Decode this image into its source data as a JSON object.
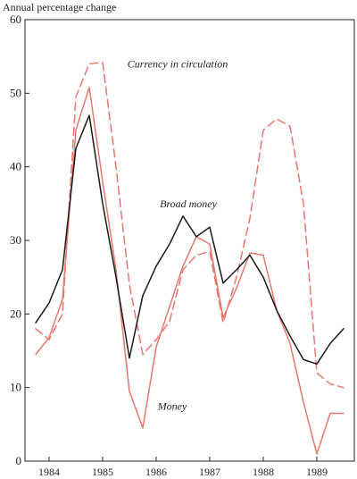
{
  "chart_data": {
    "type": "line",
    "ylabel": "Annual percentage change",
    "ylim": [
      0,
      60
    ],
    "yticks": [
      0,
      10,
      20,
      30,
      40,
      50,
      60
    ],
    "xlim": [
      1983.55,
      1989.7
    ],
    "xticks": [
      "1984",
      "1985",
      "1986",
      "1987",
      "1988",
      "1989"
    ],
    "xtick_positions": [
      1984,
      1985,
      1986,
      1987,
      1988,
      1989
    ],
    "grid": false,
    "annotations": [
      {
        "text": "Currency in circulation",
        "series": "currency",
        "x": 1986.4,
        "y": 53.5
      },
      {
        "text": "Broad money",
        "series": "broad",
        "x": 1986.6,
        "y": 34.5
      },
      {
        "text": "Money",
        "series": "money",
        "x": 1986.3,
        "y": 7.0
      }
    ],
    "series": [
      {
        "id": "broad",
        "name": "Broad money",
        "color": "#1a1a1a",
        "style": "solid",
        "x": [
          1983.75,
          1984.0,
          1984.25,
          1984.5,
          1984.75,
          1985.0,
          1985.25,
          1985.5,
          1985.75,
          1986.0,
          1986.25,
          1986.5,
          1986.75,
          1987.0,
          1987.25,
          1987.5,
          1987.75,
          1988.0,
          1988.25,
          1988.5,
          1988.75,
          1989.0,
          1989.25,
          1989.5
        ],
        "values": [
          18.8,
          21.5,
          26.0,
          42.5,
          47.0,
          35.0,
          25.0,
          14.0,
          22.5,
          26.5,
          29.5,
          33.3,
          30.5,
          31.8,
          24.2,
          26.0,
          28.0,
          25.0,
          20.5,
          17.0,
          13.8,
          13.2,
          16.0,
          18.0
        ]
      },
      {
        "id": "money",
        "name": "Money",
        "color": "#e8776f",
        "style": "solid",
        "x": [
          1983.75,
          1984.0,
          1984.25,
          1984.5,
          1984.75,
          1985.0,
          1985.25,
          1985.5,
          1985.75,
          1986.0,
          1986.25,
          1986.5,
          1986.75,
          1987.0,
          1987.25,
          1987.5,
          1987.75,
          1988.0,
          1988.25,
          1988.5,
          1988.75,
          1989.0,
          1989.25,
          1989.5
        ],
        "values": [
          14.5,
          16.8,
          22.0,
          45.0,
          50.8,
          38.0,
          26.0,
          9.5,
          4.5,
          15.5,
          21.0,
          26.5,
          30.5,
          29.5,
          19.5,
          23.5,
          28.3,
          28.0,
          20.5,
          16.0,
          8.0,
          1.0,
          6.5,
          6.5
        ]
      },
      {
        "id": "currency",
        "name": "Currency in circulation",
        "color": "#e8776f",
        "style": "dashed",
        "x": [
          1983.75,
          1984.0,
          1984.25,
          1984.5,
          1984.75,
          1985.0,
          1985.25,
          1985.5,
          1985.75,
          1986.0,
          1986.25,
          1986.5,
          1986.75,
          1987.0,
          1987.25,
          1987.5,
          1987.75,
          1988.0,
          1988.25,
          1988.5,
          1988.75,
          1989.0,
          1989.25,
          1989.5
        ],
        "values": [
          18.0,
          16.5,
          20.0,
          49.5,
          54.0,
          54.2,
          40.0,
          24.0,
          14.5,
          16.5,
          19.0,
          26.0,
          28.0,
          28.5,
          18.8,
          25.0,
          33.0,
          45.0,
          46.5,
          45.5,
          35.0,
          12.0,
          10.5,
          10.0
        ]
      }
    ]
  }
}
